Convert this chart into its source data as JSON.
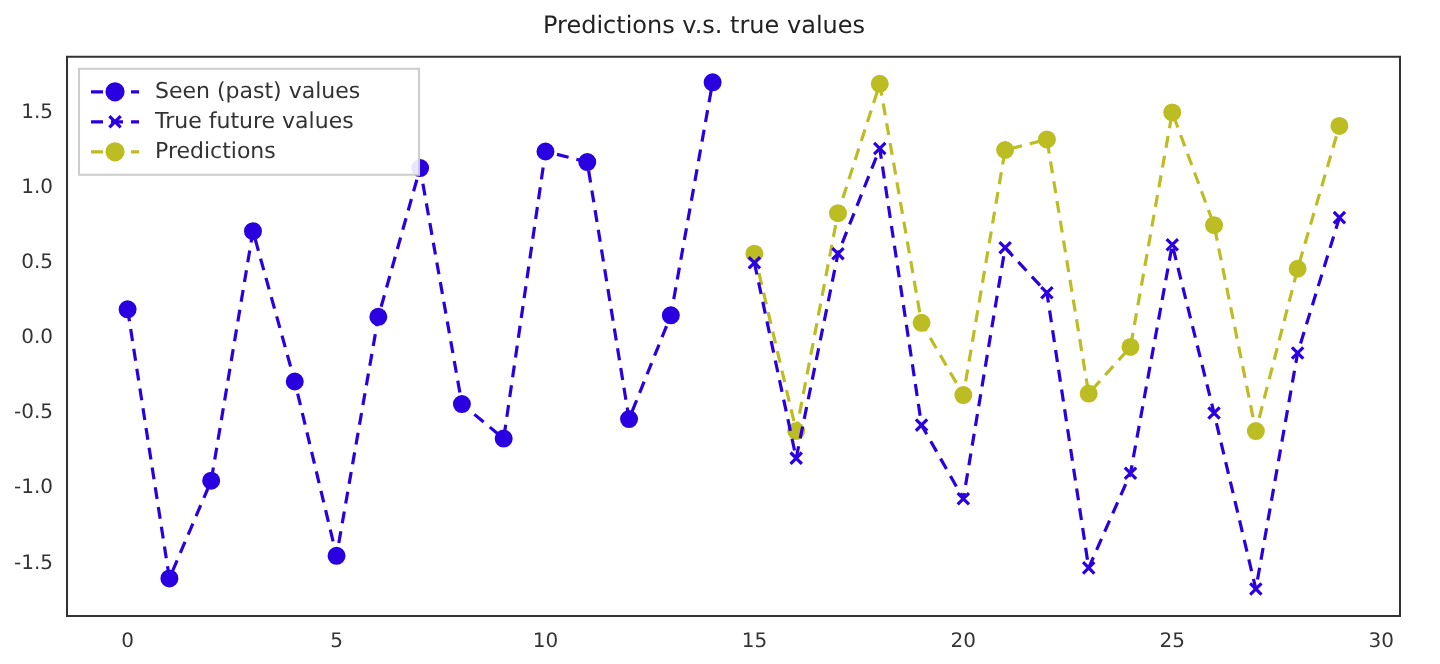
{
  "chart_data": {
    "type": "line",
    "title": "Predictions v.s. true values",
    "line_style": "dashed",
    "legend": "top left",
    "grid": false,
    "xlim": [
      -1.45,
      30.45
    ],
    "xticks": [
      0,
      5,
      10,
      15,
      20,
      25,
      30
    ],
    "ylim": [
      -1.85,
      1.87
    ],
    "yticks": [
      -1.5,
      {
        "value": -1,
        "label": "-1.0"
      },
      -0.5,
      {
        "value": 0,
        "label": "0.0"
      },
      0.5,
      {
        "value": 1,
        "label": "1.0"
      },
      1.5
    ],
    "series": [
      {
        "name": "Seen (past) values",
        "color": "#2a00e0",
        "marker": "circle",
        "x": [
          0,
          1,
          2,
          3,
          4,
          5,
          6,
          7,
          8,
          9,
          10,
          11,
          12,
          13,
          14
        ],
        "values": [
          0.19,
          -1.6,
          -0.95,
          0.71,
          -0.29,
          -1.45,
          0.14,
          1.13,
          -0.44,
          -0.67,
          1.24,
          1.17,
          -0.54,
          0.15,
          1.7
        ]
      },
      {
        "name": "True future values",
        "color": "#2a00e0",
        "marker": "cross",
        "x": [
          15,
          16,
          17,
          18,
          19,
          20,
          21,
          22,
          23,
          24,
          25,
          26,
          27,
          28,
          29
        ],
        "values": [
          0.5,
          -0.8,
          0.56,
          1.26,
          -0.58,
          -1.07,
          0.6,
          0.3,
          -1.53,
          -0.9,
          0.62,
          -0.5,
          -1.67,
          -0.1,
          0.8
        ]
      },
      {
        "name": "Predictions",
        "color": "#bcbd22",
        "marker": "circle",
        "x": [
          15,
          16,
          17,
          18,
          19,
          20,
          21,
          22,
          23,
          24,
          25,
          26,
          27,
          28,
          29
        ],
        "values": [
          0.56,
          -0.62,
          0.83,
          1.69,
          0.1,
          -0.38,
          1.25,
          1.32,
          -0.37,
          -0.06,
          1.5,
          0.75,
          -0.62,
          0.46,
          1.41
        ]
      }
    ]
  }
}
